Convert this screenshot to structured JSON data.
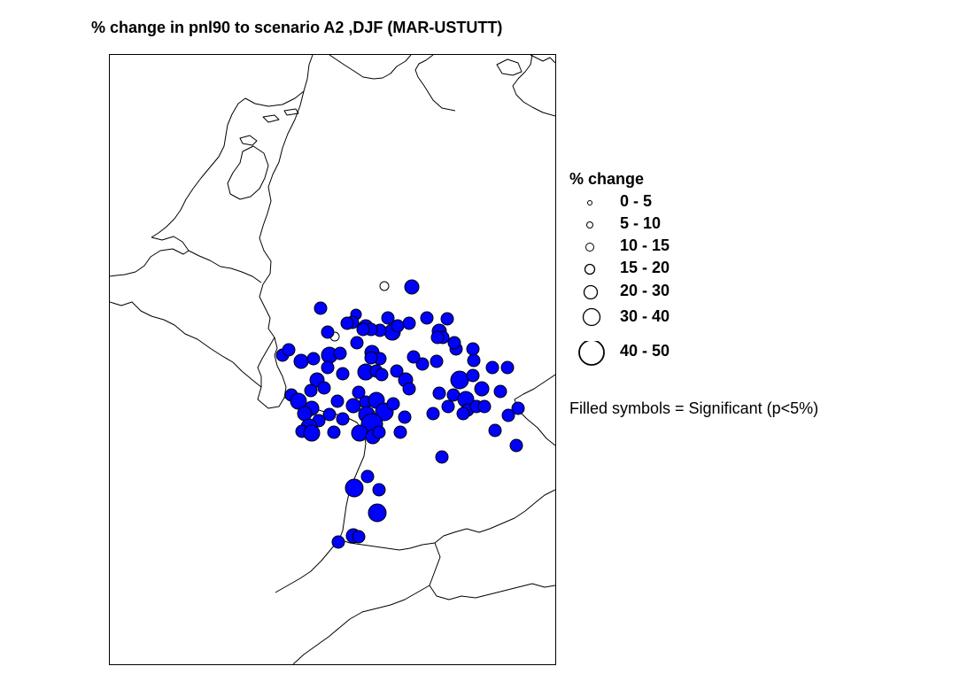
{
  "title": "% change in pnl90 to scenario A2 ,DJF (MAR-USTUTT)",
  "colors": {
    "significant_fill": "#0000ff",
    "nonsignificant_fill": "#ffffff",
    "symbol_stroke": "#000000",
    "boundary_stroke": "#000000"
  },
  "legend": {
    "title": "% change",
    "classes": [
      {
        "label": "0 - 5"
      },
      {
        "label": "5 - 10"
      },
      {
        "label": "10 - 15"
      },
      {
        "label": "15 - 20"
      },
      {
        "label": "20 - 30"
      },
      {
        "label": "30 - 40"
      },
      {
        "label": "40 - 50"
      }
    ],
    "note": "Filled symbols = Significant (p<5%)"
  },
  "stations": {
    "significant_count": 145,
    "nonsignificant_count": 2
  }
}
